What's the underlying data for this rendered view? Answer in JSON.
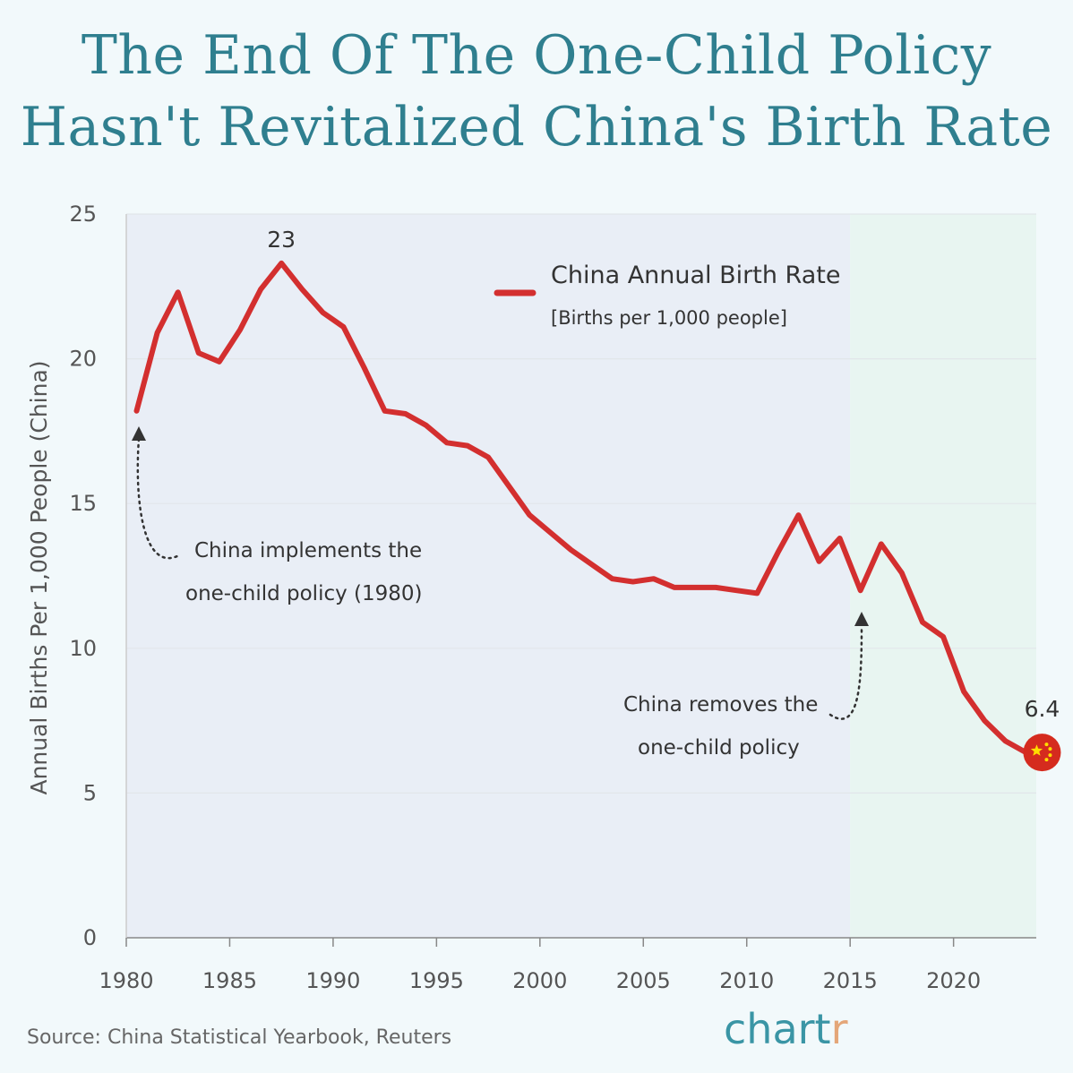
{
  "title": {
    "line1": "The End Of The One-Child Policy",
    "line2": "Hasn't Revitalized China's Birth Rate"
  },
  "source": "Source: China Statistical Yearbook, Reuters",
  "logo": {
    "main": "chart",
    "accent": "r"
  },
  "colors": {
    "line": "#d32f2f",
    "shade_early": "#e9eef6",
    "shade_late": "#e8f5f1",
    "title": "#2f7f8f",
    "flag": "#d52b1e",
    "flag_star": "#ffde00"
  },
  "chart_data": {
    "type": "line",
    "xlim": [
      1980,
      2024
    ],
    "ylim": [
      0,
      25
    ],
    "yticks": [
      0,
      5,
      10,
      15,
      20,
      25
    ],
    "xticks": [
      1980,
      1985,
      1990,
      1995,
      2000,
      2005,
      2010,
      2015,
      2020
    ],
    "ylabel": "Annual Births Per 1,000 People (China)",
    "xlabel": "",
    "grid": true,
    "legend": {
      "placement": "top-center",
      "title": "China Annual Birth Rate",
      "subtitle": "[Births per 1,000 people]"
    },
    "shaded_regions": [
      {
        "from": 1980,
        "to": 2015,
        "color": "#e9eef6"
      },
      {
        "from": 2015,
        "to": 2024,
        "color": "#e8f5f1"
      }
    ],
    "series": [
      {
        "name": "China Annual Birth Rate",
        "x": [
          1980,
          1981,
          1982,
          1983,
          1984,
          1985,
          1986,
          1987,
          1988,
          1989,
          1990,
          1991,
          1992,
          1993,
          1994,
          1995,
          1996,
          1997,
          1998,
          1999,
          2000,
          2001,
          2002,
          2003,
          2004,
          2005,
          2006,
          2007,
          2008,
          2009,
          2010,
          2011,
          2012,
          2013,
          2014,
          2015,
          2016,
          2017,
          2018,
          2019,
          2020,
          2021,
          2022,
          2023
        ],
        "values": [
          18.2,
          20.9,
          22.3,
          20.2,
          19.9,
          21.0,
          22.4,
          23.3,
          22.4,
          21.6,
          21.1,
          19.7,
          18.2,
          18.1,
          17.7,
          17.1,
          17.0,
          16.6,
          15.6,
          14.6,
          14.0,
          13.4,
          12.9,
          12.4,
          12.3,
          12.4,
          12.1,
          12.1,
          12.1,
          12.0,
          11.9,
          13.3,
          14.6,
          13.0,
          13.8,
          12.0,
          13.6,
          12.6,
          10.9,
          10.4,
          8.5,
          7.5,
          6.8,
          6.4
        ]
      }
    ],
    "annotations": [
      {
        "text": "23",
        "x": 1987.5,
        "y": 23.3
      },
      {
        "text": "6.4",
        "x": 2023,
        "y": 6.4
      },
      {
        "line1": "China implements the",
        "line2": "one-child policy (1980)",
        "x": 1980,
        "y": 18.2
      },
      {
        "line1": "China removes the",
        "line2": "one-child policy",
        "x": 2015,
        "y": 12.0
      }
    ]
  }
}
